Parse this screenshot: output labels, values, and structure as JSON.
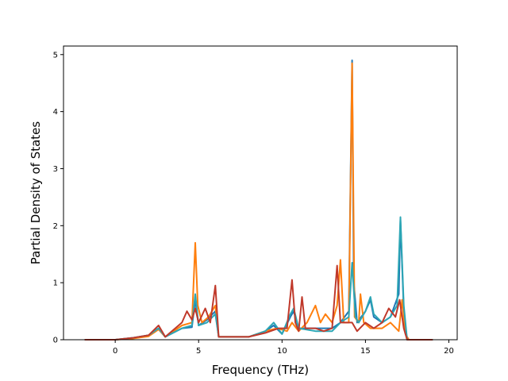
{
  "chart_data": {
    "type": "line",
    "title": "",
    "xlabel": "Frequency (THz)",
    "ylabel": "Partial Density of States",
    "xlim": [
      -3.1,
      20.5
    ],
    "ylim": [
      0,
      5.15
    ],
    "xticks": [
      "0",
      "5",
      "10",
      "15",
      "20"
    ],
    "yticks": [
      "0",
      "1",
      "2",
      "3",
      "4",
      "5"
    ],
    "grid": false,
    "legend": "none",
    "series": [
      {
        "color": "#1f77b4",
        "points": [
          [
            -1.8,
            0
          ],
          [
            0,
            0
          ],
          [
            1,
            0.03
          ],
          [
            2,
            0.08
          ],
          [
            2.6,
            0.2
          ],
          [
            3,
            0.05
          ],
          [
            4,
            0.2
          ],
          [
            4.6,
            0.22
          ],
          [
            4.8,
            0.7
          ],
          [
            5,
            0.25
          ],
          [
            5.5,
            0.35
          ],
          [
            6,
            0.5
          ],
          [
            6.2,
            0.05
          ],
          [
            8,
            0.05
          ],
          [
            9,
            0.15
          ],
          [
            9.5,
            0.25
          ],
          [
            10,
            0.1
          ],
          [
            10.5,
            0.4
          ],
          [
            10.7,
            0.5
          ],
          [
            11,
            0.2
          ],
          [
            12,
            0.2
          ],
          [
            13,
            0.2
          ],
          [
            13.5,
            0.3
          ],
          [
            14,
            0.5
          ],
          [
            14.2,
            4.9
          ],
          [
            14.3,
            1.0
          ],
          [
            14.5,
            0.3
          ],
          [
            15,
            0.5
          ],
          [
            15.3,
            0.7
          ],
          [
            15.5,
            0.4
          ],
          [
            16,
            0.3
          ],
          [
            16.5,
            0.4
          ],
          [
            17,
            0.8
          ],
          [
            17.1,
            2.1
          ],
          [
            17.3,
            0.5
          ],
          [
            17.5,
            0
          ],
          [
            19,
            0
          ]
        ]
      },
      {
        "color": "#ff7f0e",
        "points": [
          [
            -1.8,
            0
          ],
          [
            0,
            0
          ],
          [
            1,
            0.02
          ],
          [
            2,
            0.06
          ],
          [
            2.6,
            0.18
          ],
          [
            3,
            0.05
          ],
          [
            4,
            0.25
          ],
          [
            4.6,
            0.3
          ],
          [
            4.8,
            1.7
          ],
          [
            4.95,
            0.6
          ],
          [
            5.2,
            0.3
          ],
          [
            5.6,
            0.4
          ],
          [
            6,
            0.6
          ],
          [
            6.2,
            0.05
          ],
          [
            8,
            0.05
          ],
          [
            9,
            0.15
          ],
          [
            9.7,
            0.2
          ],
          [
            10.3,
            0.15
          ],
          [
            10.6,
            0.3
          ],
          [
            11,
            0.15
          ],
          [
            11.5,
            0.3
          ],
          [
            12,
            0.6
          ],
          [
            12.3,
            0.3
          ],
          [
            12.6,
            0.45
          ],
          [
            13,
            0.3
          ],
          [
            13.3,
            0.6
          ],
          [
            13.5,
            1.4
          ],
          [
            13.7,
            0.3
          ],
          [
            14,
            0.3
          ],
          [
            14.2,
            4.85
          ],
          [
            14.35,
            0.4
          ],
          [
            14.6,
            0.3
          ],
          [
            14.7,
            0.8
          ],
          [
            14.9,
            0.3
          ],
          [
            15.3,
            0.2
          ],
          [
            16,
            0.2
          ],
          [
            16.5,
            0.3
          ],
          [
            17,
            0.15
          ],
          [
            17.2,
            0.7
          ],
          [
            17.4,
            0.1
          ],
          [
            17.6,
            0
          ],
          [
            19,
            0
          ]
        ]
      },
      {
        "color": "#2ca6b5",
        "points": [
          [
            -1.8,
            0
          ],
          [
            0,
            0
          ],
          [
            1,
            0.03
          ],
          [
            2,
            0.08
          ],
          [
            2.6,
            0.2
          ],
          [
            3,
            0.05
          ],
          [
            4,
            0.2
          ],
          [
            4.6,
            0.25
          ],
          [
            4.8,
            0.8
          ],
          [
            5,
            0.25
          ],
          [
            5.5,
            0.3
          ],
          [
            6,
            0.45
          ],
          [
            6.2,
            0.05
          ],
          [
            8,
            0.05
          ],
          [
            9,
            0.15
          ],
          [
            9.5,
            0.3
          ],
          [
            10,
            0.1
          ],
          [
            10.5,
            0.45
          ],
          [
            10.7,
            0.55
          ],
          [
            11,
            0.2
          ],
          [
            12,
            0.15
          ],
          [
            13,
            0.15
          ],
          [
            13.5,
            0.3
          ],
          [
            14,
            0.4
          ],
          [
            14.2,
            1.35
          ],
          [
            14.4,
            0.4
          ],
          [
            14.6,
            0.3
          ],
          [
            15,
            0.5
          ],
          [
            15.3,
            0.75
          ],
          [
            15.5,
            0.45
          ],
          [
            16,
            0.3
          ],
          [
            16.5,
            0.4
          ],
          [
            16.9,
            0.6
          ],
          [
            17.1,
            2.15
          ],
          [
            17.3,
            0.6
          ],
          [
            17.5,
            0
          ],
          [
            19,
            0
          ]
        ]
      },
      {
        "color": "#c0392b",
        "points": [
          [
            -1.8,
            0
          ],
          [
            0,
            0
          ],
          [
            1,
            0.03
          ],
          [
            2,
            0.08
          ],
          [
            2.6,
            0.25
          ],
          [
            3,
            0.05
          ],
          [
            4,
            0.3
          ],
          [
            4.3,
            0.5
          ],
          [
            4.6,
            0.35
          ],
          [
            4.8,
            0.55
          ],
          [
            5,
            0.3
          ],
          [
            5.4,
            0.55
          ],
          [
            5.7,
            0.3
          ],
          [
            6,
            0.95
          ],
          [
            6.2,
            0.05
          ],
          [
            8,
            0.05
          ],
          [
            9,
            0.12
          ],
          [
            9.8,
            0.2
          ],
          [
            10.3,
            0.2
          ],
          [
            10.6,
            1.05
          ],
          [
            10.8,
            0.3
          ],
          [
            11,
            0.15
          ],
          [
            11.2,
            0.75
          ],
          [
            11.4,
            0.2
          ],
          [
            12,
            0.2
          ],
          [
            12.5,
            0.15
          ],
          [
            13,
            0.2
          ],
          [
            13.3,
            1.3
          ],
          [
            13.5,
            0.3
          ],
          [
            14,
            0.3
          ],
          [
            14.2,
            0.3
          ],
          [
            14.5,
            0.15
          ],
          [
            15,
            0.3
          ],
          [
            15.5,
            0.2
          ],
          [
            16,
            0.3
          ],
          [
            16.4,
            0.55
          ],
          [
            16.8,
            0.4
          ],
          [
            17.05,
            0.7
          ],
          [
            17.3,
            0.2
          ],
          [
            17.5,
            0
          ],
          [
            19,
            0
          ]
        ]
      }
    ]
  }
}
